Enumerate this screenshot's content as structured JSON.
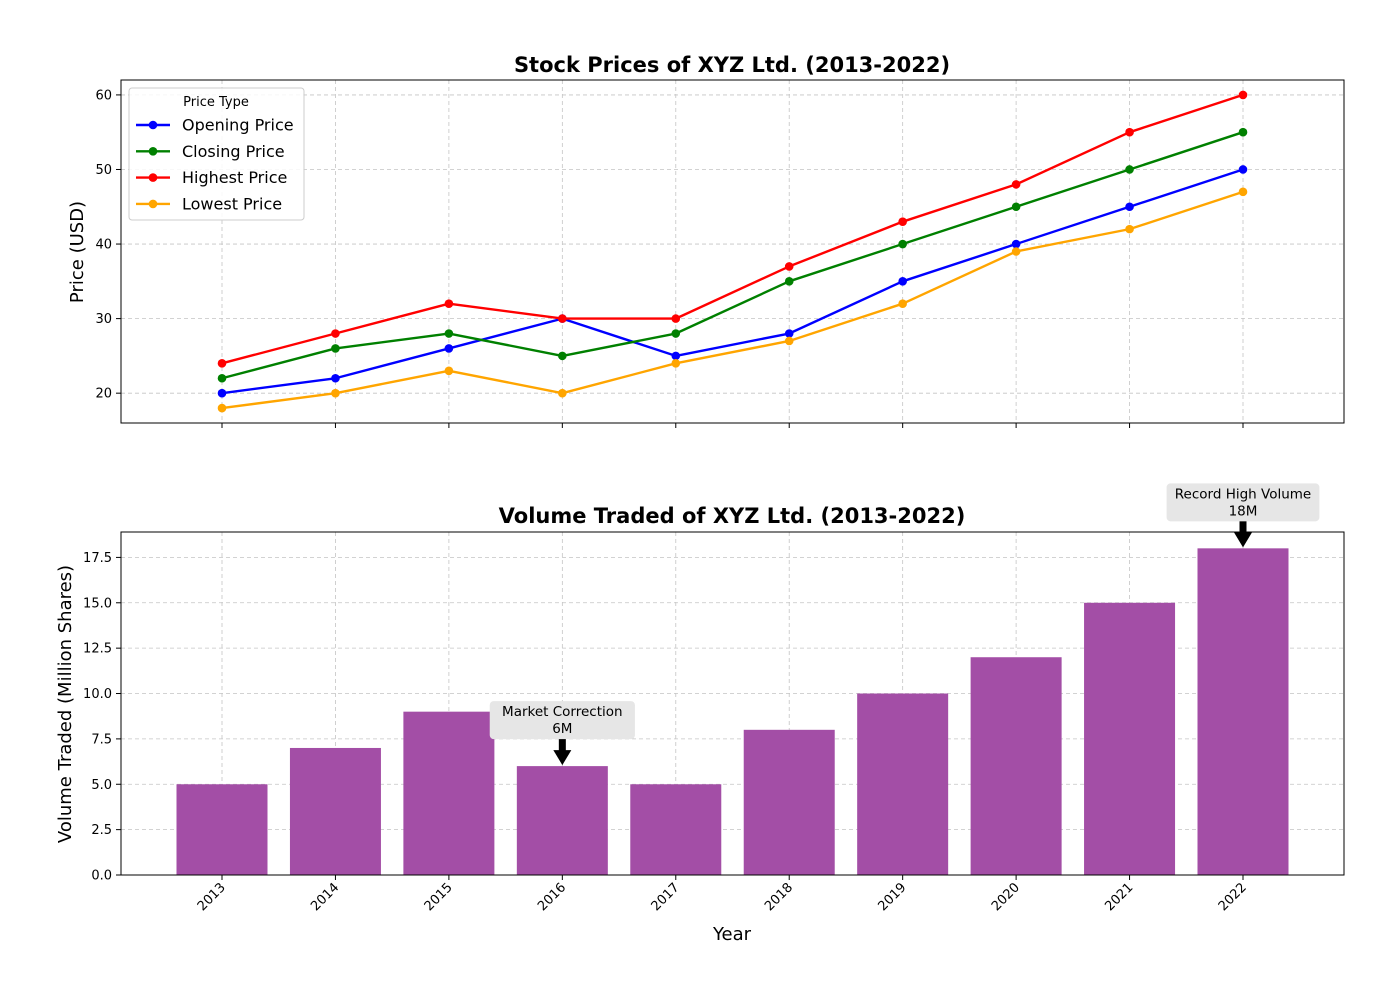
{
  "chart_data": [
    {
      "type": "line",
      "title": "Stock Prices of XYZ Ltd. (2013-2022)",
      "xlabel": "",
      "ylabel": "Price (USD)",
      "categories": [
        "2013",
        "2014",
        "2015",
        "2016",
        "2017",
        "2018",
        "2019",
        "2020",
        "2021",
        "2022"
      ],
      "ylim": [
        16,
        62
      ],
      "yticks": [
        20,
        30,
        40,
        50,
        60
      ],
      "grid": true,
      "legend": {
        "title": "Price Type",
        "position": "top-left"
      },
      "series": [
        {
          "name": "Opening Price",
          "color": "#0000ff",
          "values": [
            20,
            22,
            26,
            30,
            25,
            28,
            35,
            40,
            45,
            50
          ]
        },
        {
          "name": "Closing Price",
          "color": "#008000",
          "values": [
            22,
            26,
            28,
            25,
            28,
            35,
            40,
            45,
            50,
            55
          ]
        },
        {
          "name": "Highest Price",
          "color": "#ff0000",
          "values": [
            24,
            28,
            32,
            30,
            30,
            37,
            43,
            48,
            55,
            60
          ]
        },
        {
          "name": "Lowest Price",
          "color": "#ffa500",
          "values": [
            18,
            20,
            23,
            20,
            24,
            27,
            32,
            39,
            42,
            47
          ]
        }
      ]
    },
    {
      "type": "bar",
      "title": "Volume Traded of XYZ Ltd. (2013-2022)",
      "xlabel": "Year",
      "ylabel": "Volume Traded (Million Shares)",
      "categories": [
        "2013",
        "2014",
        "2015",
        "2016",
        "2017",
        "2018",
        "2019",
        "2020",
        "2021",
        "2022"
      ],
      "values": [
        5,
        7,
        9,
        6,
        5,
        8,
        10,
        12,
        15,
        18
      ],
      "ylim": [
        0,
        18.9
      ],
      "yticks": [
        "0.0",
        "2.5",
        "5.0",
        "7.5",
        "10.0",
        "12.5",
        "15.0",
        "17.5"
      ],
      "bar_color": "#a34ea6",
      "grid": true,
      "annotations": [
        {
          "category": "2016",
          "value": 6,
          "lines": [
            "Market Correction",
            "6M"
          ]
        },
        {
          "category": "2022",
          "value": 18,
          "lines": [
            "Record High Volume",
            "18M"
          ]
        }
      ]
    }
  ]
}
